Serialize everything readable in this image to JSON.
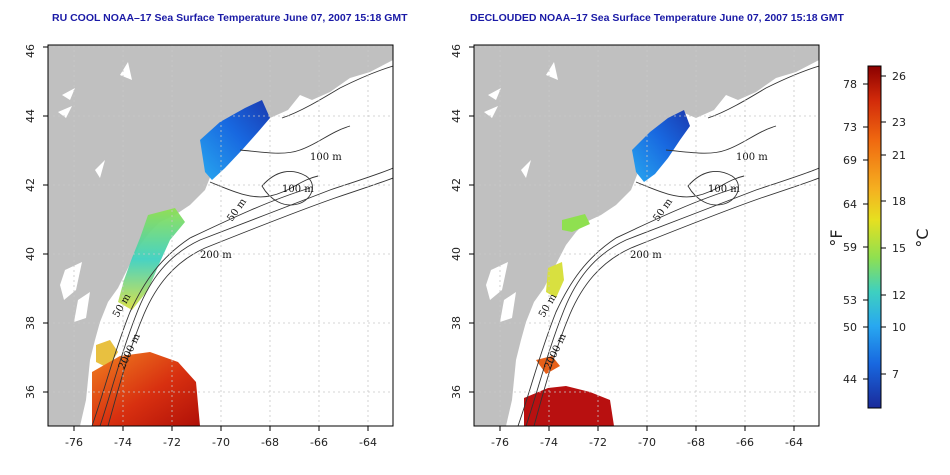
{
  "maps": [
    {
      "title": "RU COOL NOAA–17 Sea Surface Temperature June 07, 2007 15:18 GMT",
      "x_ticks": [
        "-76",
        "-74",
        "-72",
        "-70",
        "-68",
        "-66",
        "-64"
      ],
      "y_ticks": [
        "36",
        "38",
        "40",
        "42",
        "44",
        "46"
      ],
      "contour_labels": [
        "100 m",
        "100 m",
        "50 m",
        "200 m",
        "50 m",
        "2000 m"
      ]
    },
    {
      "title": "DECLOUDED NOAA–17 Sea Surface Temperature June 07, 2007 15:18 GMT",
      "x_ticks": [
        "-76",
        "-74",
        "-72",
        "-70",
        "-68",
        "-66",
        "-64"
      ],
      "y_ticks": [
        "36",
        "38",
        "40",
        "42",
        "44",
        "46"
      ],
      "contour_labels": [
        "100 m",
        "100 m",
        "50 m",
        "200 m",
        "50 m",
        "2000 m"
      ]
    }
  ],
  "colorbar": {
    "fahrenheit_unit": "°F",
    "celsius_unit": "°C",
    "fahrenheit_labels": [
      "78",
      "73",
      "69",
      "64",
      "59",
      "53",
      "50",
      "44"
    ],
    "celsius_labels": [
      "26",
      "23",
      "21",
      "18",
      "15",
      "12",
      "10",
      "7"
    ],
    "colors": [
      "#8b0000",
      "#d22a0a",
      "#f06a10",
      "#f5b020",
      "#e6e020",
      "#8fe050",
      "#3ed0c0",
      "#28a8f0",
      "#1868e0",
      "#1a2a9a"
    ]
  },
  "colors": {
    "land": "#c0c0c0",
    "ocean": "#ffffff",
    "grid": "#c8c8c8",
    "title": "#1a1aa6"
  }
}
